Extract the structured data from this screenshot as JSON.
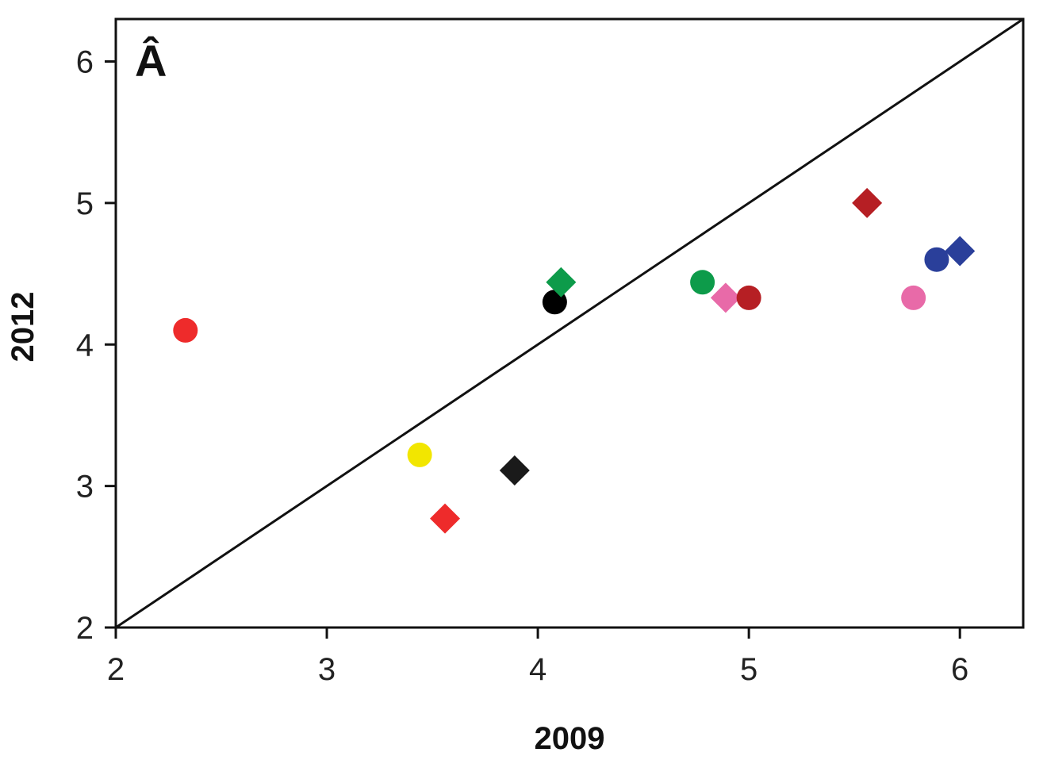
{
  "chart_data": {
    "type": "scatter",
    "panel_label": "Â",
    "xlabel": "2009",
    "ylabel": "2012",
    "xlim": [
      2,
      6.3
    ],
    "ylim": [
      2,
      6.3
    ],
    "xticks": [
      2,
      3,
      4,
      5,
      6
    ],
    "yticks": [
      2,
      3,
      4,
      5,
      6
    ],
    "grid": false,
    "reference_line": {
      "type": "identity",
      "from": [
        2,
        2
      ],
      "to": [
        6.3,
        6.3
      ]
    },
    "points": [
      {
        "x": 2.33,
        "y": 4.1,
        "marker": "circle",
        "color": "#ee2b2b"
      },
      {
        "x": 3.44,
        "y": 3.22,
        "marker": "circle",
        "color": "#f2e600"
      },
      {
        "x": 3.56,
        "y": 2.77,
        "marker": "diamond",
        "color": "#ee2b2b"
      },
      {
        "x": 3.89,
        "y": 3.11,
        "marker": "diamond",
        "color": "#1a1a1a"
      },
      {
        "x": 4.08,
        "y": 4.3,
        "marker": "circle",
        "color": "#000000"
      },
      {
        "x": 4.11,
        "y": 4.44,
        "marker": "diamond",
        "color": "#0d9b4a"
      },
      {
        "x": 4.78,
        "y": 4.44,
        "marker": "circle",
        "color": "#0d9b4a"
      },
      {
        "x": 4.89,
        "y": 4.33,
        "marker": "diamond",
        "color": "#e86aa8"
      },
      {
        "x": 5.0,
        "y": 4.33,
        "marker": "circle",
        "color": "#b61f24"
      },
      {
        "x": 5.56,
        "y": 5.0,
        "marker": "diamond",
        "color": "#b61f24"
      },
      {
        "x": 5.78,
        "y": 4.33,
        "marker": "circle",
        "color": "#e86aa8"
      },
      {
        "x": 5.89,
        "y": 4.6,
        "marker": "circle",
        "color": "#2a3f9a"
      },
      {
        "x": 6.0,
        "y": 4.66,
        "marker": "diamond",
        "color": "#2a3f9a"
      }
    ]
  }
}
